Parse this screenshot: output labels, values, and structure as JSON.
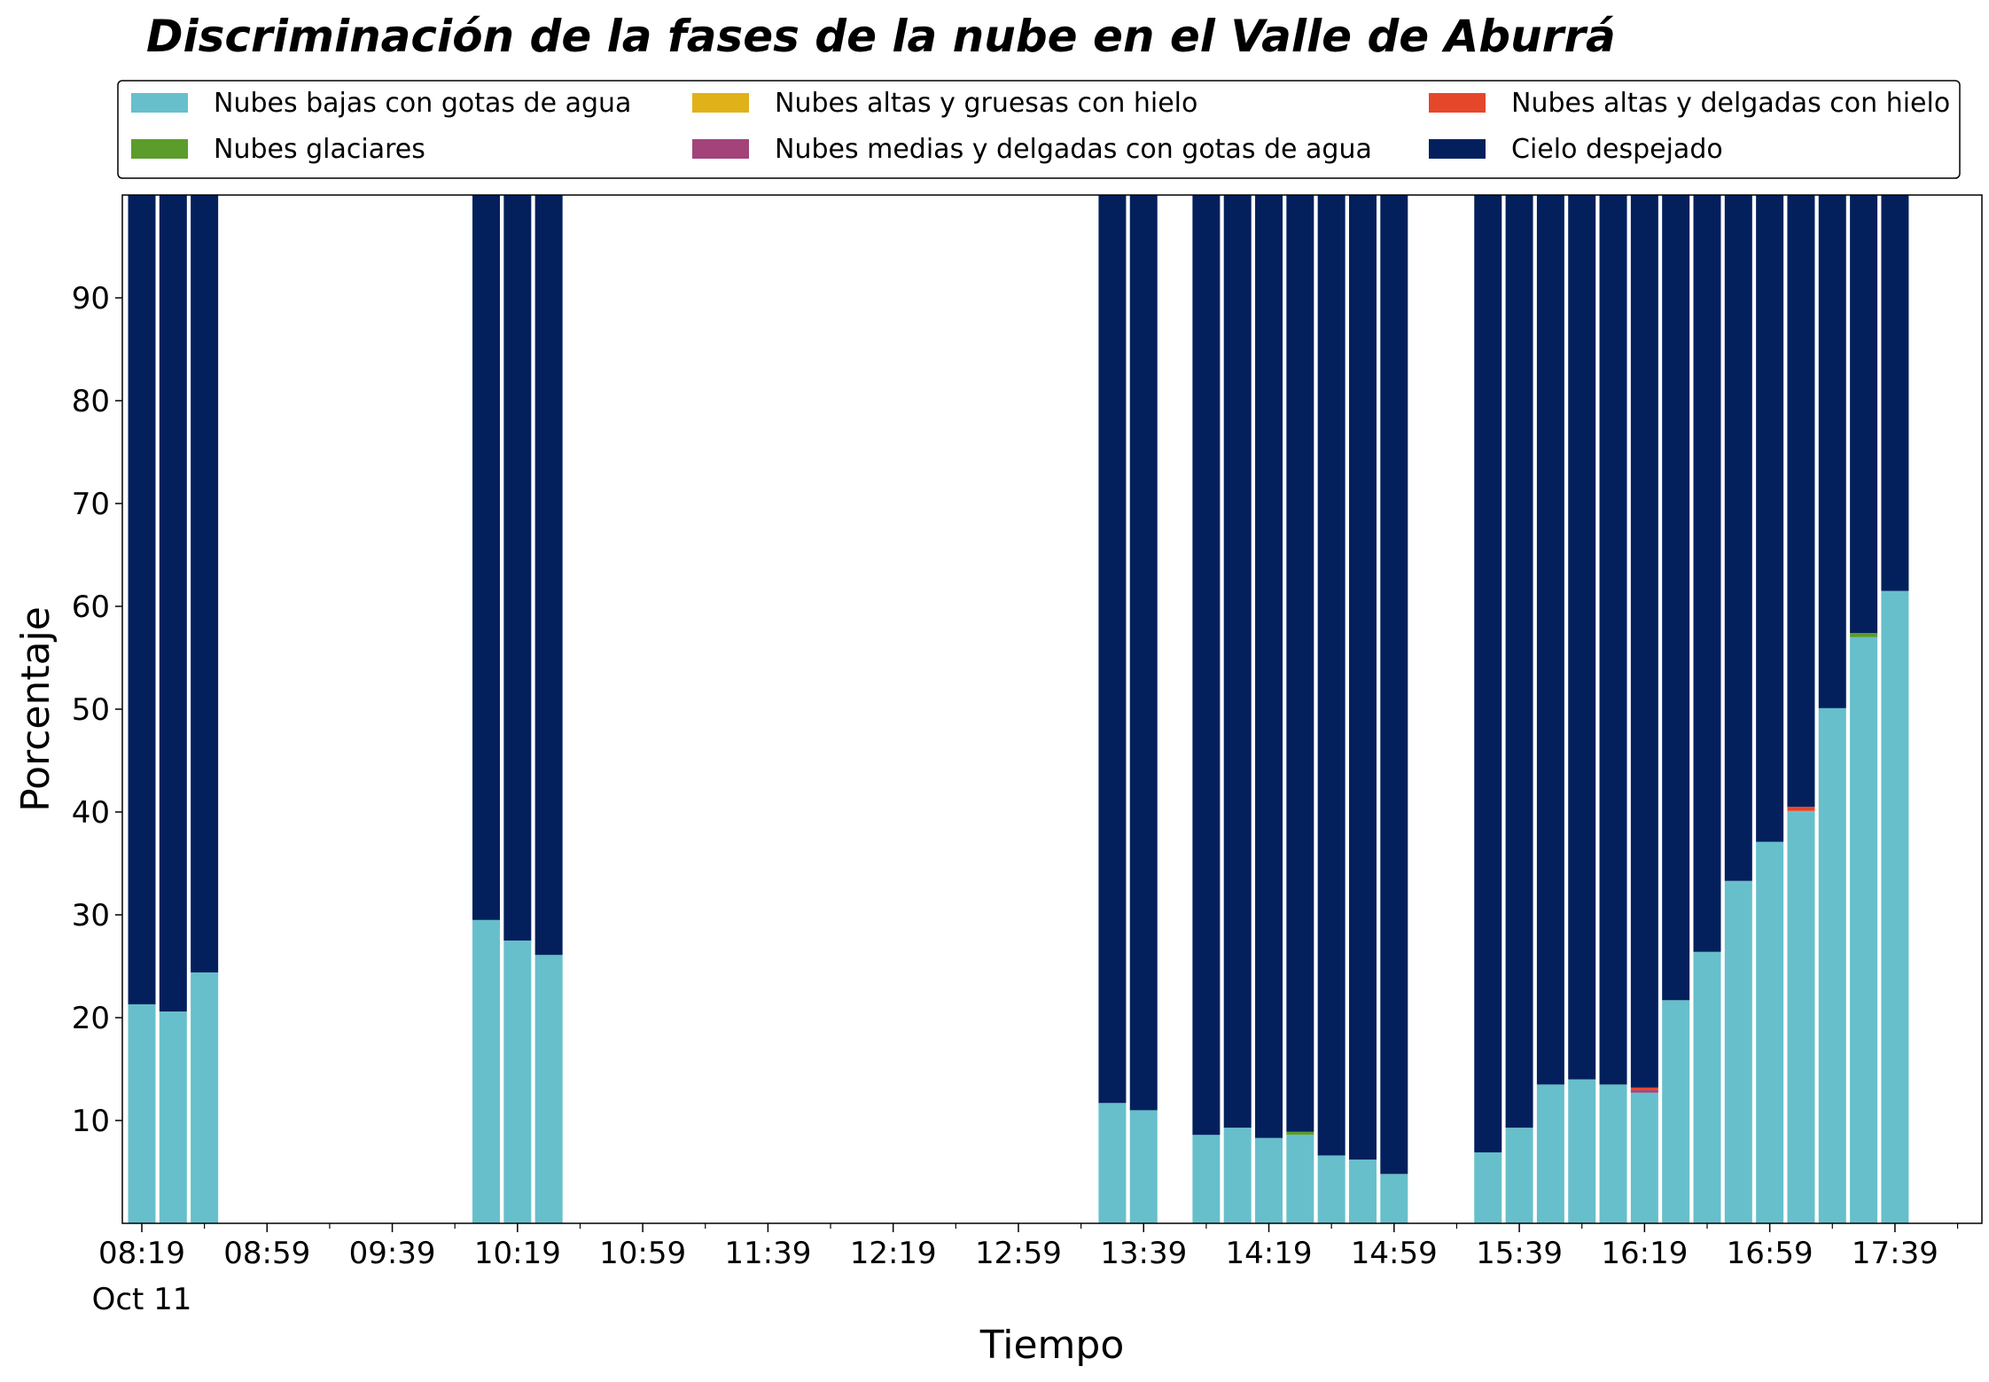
{
  "chart_data": {
    "type": "bar",
    "stacked": true,
    "title": "Discriminación de la fases de la nube en el Valle de Aburrá",
    "xlabel": "Tiempo",
    "ylabel": "Porcentaje",
    "ylim": [
      0,
      100
    ],
    "yticks": [
      10,
      20,
      30,
      40,
      50,
      60,
      70,
      80,
      90
    ],
    "xticks": [
      "08:19",
      "08:59",
      "09:39",
      "10:19",
      "10:59",
      "11:39",
      "12:19",
      "12:59",
      "13:39",
      "14:19",
      "14:59",
      "15:39",
      "16:19",
      "16:59",
      "17:39"
    ],
    "xtick_date": "Oct 11",
    "legend_placement": "top",
    "grid": false,
    "x": [
      "08:19",
      "08:29",
      "08:39",
      "10:09",
      "10:19",
      "10:29",
      "13:29",
      "13:39",
      "13:59",
      "14:09",
      "14:19",
      "14:29",
      "14:39",
      "14:49",
      "14:59",
      "15:29",
      "15:39",
      "15:49",
      "15:59",
      "16:09",
      "16:19",
      "16:29",
      "16:39",
      "16:49",
      "16:59",
      "17:09",
      "17:19",
      "17:29",
      "17:39"
    ],
    "series": [
      {
        "name": "Nubes bajas con gotas de agua",
        "color": "#67bfcb",
        "values": [
          21.3,
          20.6,
          24.4,
          29.5,
          27.5,
          26.1,
          11.7,
          11.0,
          8.6,
          9.3,
          8.3,
          8.6,
          6.6,
          6.2,
          4.8,
          6.9,
          9.3,
          13.5,
          14.0,
          13.5,
          12.7,
          21.7,
          26.4,
          33.3,
          37.1,
          40.1,
          50.1,
          57.0,
          61.5
        ]
      },
      {
        "name": "Nubes glaciares",
        "color": "#5c9c2b",
        "values": [
          0,
          0,
          0,
          0,
          0,
          0,
          0,
          0,
          0,
          0,
          0,
          0.3,
          0,
          0,
          0,
          0,
          0,
          0,
          0,
          0,
          0,
          0,
          0,
          0,
          0,
          0,
          0,
          0.4,
          0
        ]
      },
      {
        "name": "Nubes altas y gruesas con hielo",
        "color": "#e1b11a",
        "values": [
          0,
          0,
          0,
          0,
          0,
          0,
          0,
          0,
          0,
          0,
          0,
          0,
          0,
          0,
          0,
          0,
          0,
          0,
          0,
          0,
          0,
          0,
          0,
          0,
          0,
          0,
          0,
          0,
          0
        ]
      },
      {
        "name": "Nubes medias y delgadas con gotas de agua",
        "color": "#a3437a",
        "values": [
          0,
          0,
          0,
          0,
          0,
          0,
          0,
          0,
          0,
          0,
          0,
          0,
          0,
          0,
          0,
          0,
          0,
          0,
          0,
          0,
          0.3,
          0,
          0,
          0,
          0,
          0,
          0,
          0,
          0
        ]
      },
      {
        "name": "Nubes altas y delgadas con hielo",
        "color": "#e5472a",
        "values": [
          0,
          0,
          0,
          0,
          0,
          0,
          0,
          0,
          0,
          0,
          0,
          0,
          0,
          0,
          0,
          0,
          0,
          0,
          0,
          0,
          0.2,
          0,
          0,
          0,
          0,
          0.4,
          0,
          0,
          0
        ]
      },
      {
        "name": "Cielo despejado",
        "color": "#03205d",
        "values": [
          78.7,
          79.4,
          75.6,
          70.5,
          72.5,
          73.9,
          88.3,
          89.0,
          91.4,
          90.7,
          91.7,
          91.1,
          93.4,
          93.8,
          95.2,
          93.1,
          90.7,
          86.5,
          86.0,
          86.5,
          86.8,
          78.3,
          73.6,
          66.7,
          62.9,
          59.5,
          49.9,
          42.6,
          38.5
        ]
      }
    ]
  }
}
